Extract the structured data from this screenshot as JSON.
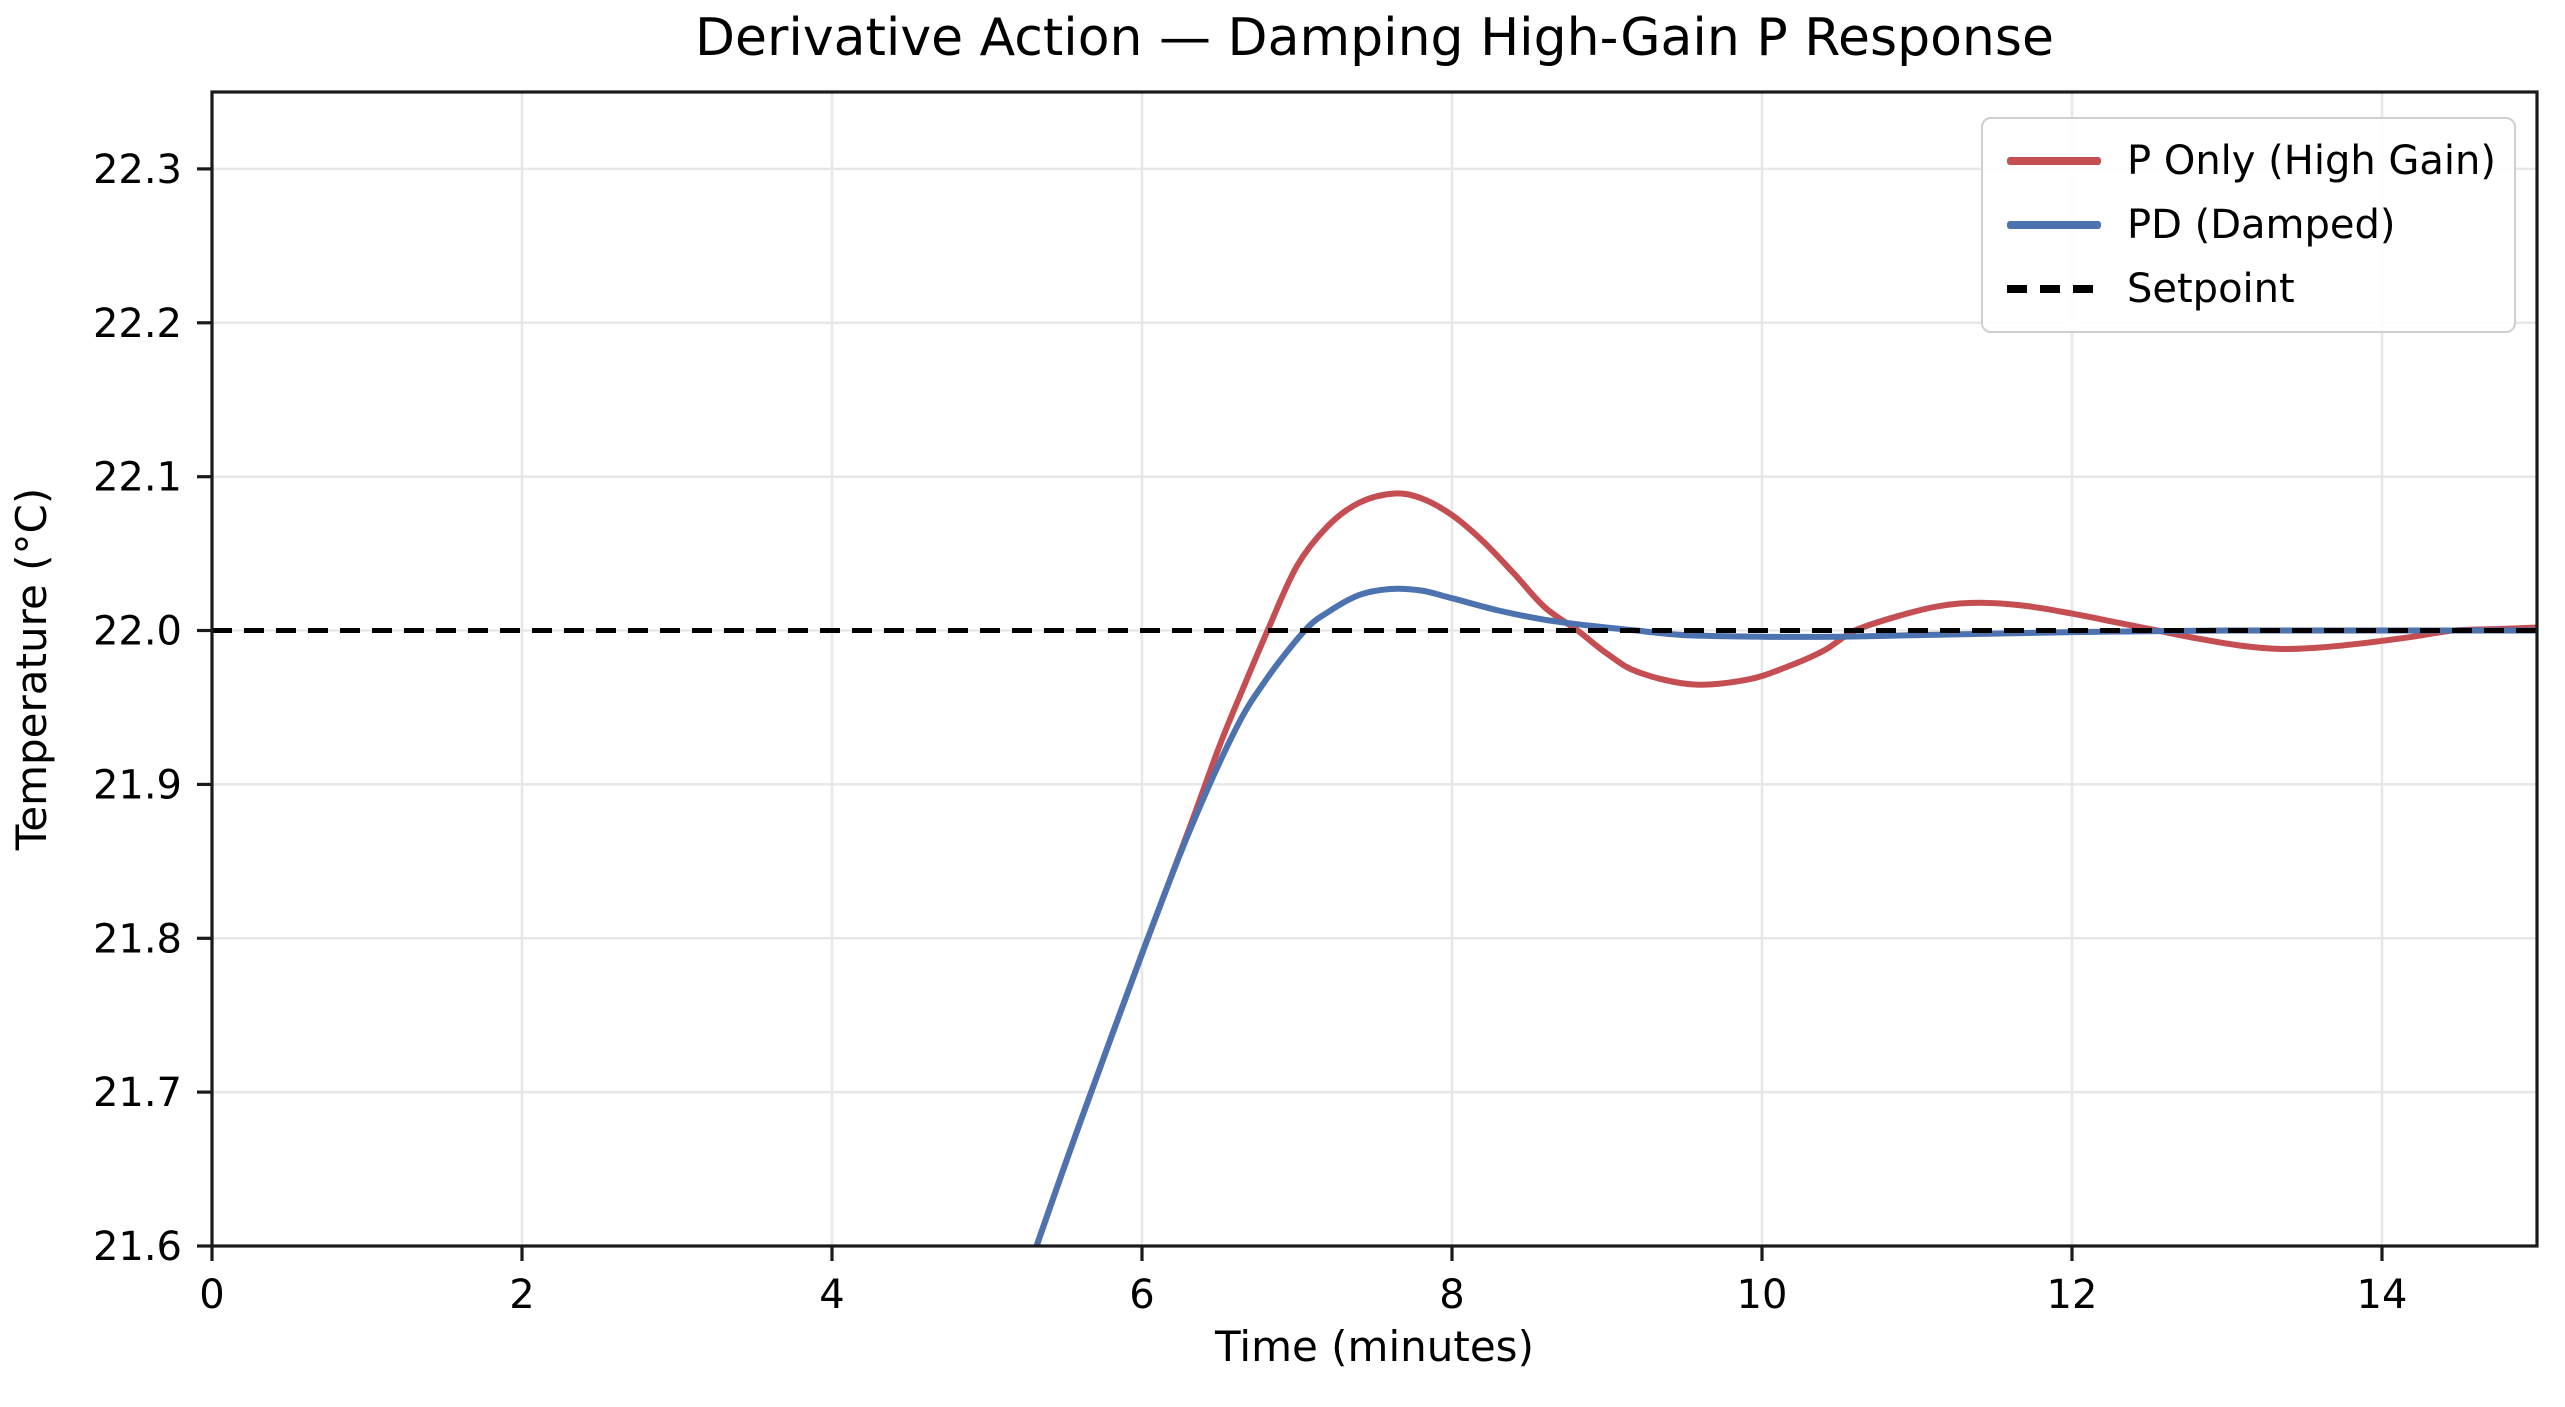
{
  "chart_data": {
    "type": "line",
    "title": "Derivative Action — Damping High-Gain P Response",
    "xlabel": "Time (minutes)",
    "ylabel": "Temperature (°C)",
    "xlim": [
      0,
      15
    ],
    "ylim": [
      21.6,
      22.35
    ],
    "xticks": [
      0,
      2,
      4,
      6,
      8,
      10,
      12,
      14
    ],
    "xtick_labels": [
      "0",
      "2",
      "4",
      "6",
      "8",
      "10",
      "12",
      "14"
    ],
    "yticks": [
      21.6,
      21.7,
      21.8,
      21.9,
      22.0,
      22.1,
      22.2,
      22.3
    ],
    "ytick_labels": [
      "21.6",
      "21.7",
      "21.8",
      "21.9",
      "22.0",
      "22.1",
      "22.2",
      "22.3"
    ],
    "grid": true,
    "legend_position": "upper right",
    "setpoint": 22.0,
    "colors": {
      "grid": "#e7e7e7",
      "spine": "#1a1a1a",
      "text": "#000000"
    },
    "series": [
      {
        "name": "P Only (High Gain)",
        "color": "#c44e52",
        "style": "solid",
        "x": [
          5.05,
          5.32,
          5.6,
          6.0,
          6.3,
          6.5,
          6.65,
          6.81,
          7.0,
          7.2,
          7.4,
          7.62,
          7.8,
          8.0,
          8.2,
          8.4,
          8.6,
          8.81,
          9.0,
          9.2,
          9.55,
          9.9,
          10.15,
          10.4,
          10.6,
          10.9,
          11.15,
          11.4,
          11.7,
          12.0,
          12.3,
          12.55,
          12.8,
          13.1,
          13.35,
          13.6,
          13.9,
          14.2,
          14.46,
          14.75,
          15.0
        ],
        "y": [
          21.52,
          21.6,
          21.68,
          21.79,
          21.87,
          21.925,
          21.962,
          22.0,
          22.042,
          22.068,
          22.083,
          22.089,
          22.086,
          22.075,
          22.058,
          22.037,
          22.015,
          22.0,
          21.985,
          21.973,
          21.965,
          21.968,
          21.976,
          21.987,
          22.0,
          22.01,
          22.016,
          22.018,
          22.016,
          22.011,
          22.005,
          22.0,
          21.995,
          21.99,
          21.988,
          21.989,
          21.992,
          21.996,
          22.0,
          22.001,
          22.002
        ]
      },
      {
        "name": "PD (Damped)",
        "color": "#4c72b0",
        "style": "solid",
        "x": [
          5.05,
          5.32,
          5.6,
          6.0,
          6.3,
          6.6,
          6.8,
          7.05,
          7.2,
          7.4,
          7.6,
          7.8,
          8.0,
          8.3,
          8.6,
          8.9,
          9.19,
          9.5,
          10.0,
          10.5,
          11.0,
          11.5,
          12.0,
          12.5,
          13.0,
          13.5,
          14.0,
          14.5,
          15.0
        ],
        "y": [
          21.52,
          21.6,
          21.68,
          21.79,
          21.868,
          21.935,
          21.968,
          22.0,
          22.012,
          22.023,
          22.027,
          22.026,
          22.021,
          22.013,
          22.007,
          22.003,
          22.0,
          21.997,
          21.996,
          21.996,
          21.997,
          21.998,
          21.999,
          21.9995,
          22.0,
          22.0,
          22.0,
          22.0,
          22.0
        ]
      },
      {
        "name": "Setpoint",
        "color": "#000000",
        "style": "dashed",
        "x": [
          0,
          15
        ],
        "y": [
          22.0,
          22.0
        ]
      }
    ]
  }
}
